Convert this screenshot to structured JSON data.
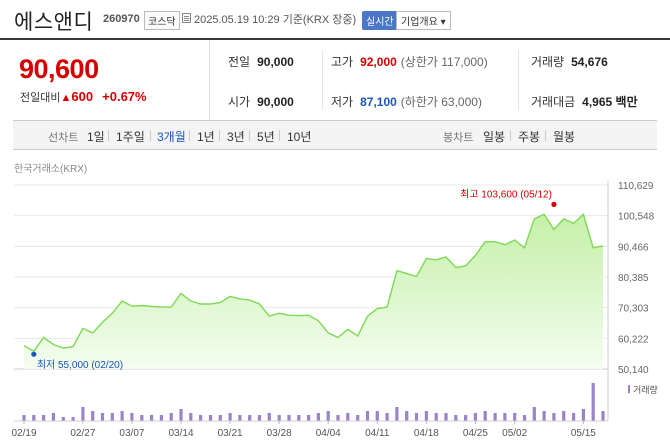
{
  "header": {
    "stock_name": "에스앤디",
    "stock_code": "260970",
    "market": "코스닥",
    "date": "2025.05.19 10:29  기준(KRX 장중)",
    "realtime_label": "실시간",
    "company_info_label": "기업개요 ▾"
  },
  "price": {
    "current": "90,600",
    "compare_label": "전일대비",
    "change_arrow": "▲",
    "change": "600",
    "change_pct": "+0.67%"
  },
  "stats": {
    "prev_close": {
      "label": "전일",
      "value": "90,000"
    },
    "high": {
      "label": "고가",
      "value": "92,000",
      "sub": "(상한가 117,000)"
    },
    "volume": {
      "label": "거래량",
      "value": "54,676"
    },
    "open": {
      "label": "시가",
      "value": "90,000"
    },
    "low": {
      "label": "저가",
      "value": "87,100",
      "sub": "(하한가 63,000)"
    },
    "trade_value": {
      "label": "거래대금",
      "value": "4,965 백만"
    }
  },
  "tabs": {
    "line_chart_label": "선차트",
    "periods": [
      "1일",
      "1주일",
      "3개월",
      "1년",
      "3년",
      "5년",
      "10년"
    ],
    "active_period": "3개월",
    "candle_chart_label": "봉차트",
    "candle_periods": [
      "일봉",
      "주봉",
      "월봉"
    ]
  },
  "chart_label": "한국거래소(KRX)",
  "colors": {
    "up": "#d60000",
    "down": "#1a57b8",
    "line": "#7ed957",
    "fill_top": "#c5f0a8",
    "fill_bottom": "#f4fdf0",
    "volume_bar": "#9b84c9"
  },
  "chart_data": {
    "type": "area",
    "x": [
      "02/19",
      "02/20",
      "02/21",
      "02/24",
      "02/25",
      "02/26",
      "02/27",
      "02/28",
      "03/04",
      "03/05",
      "03/06",
      "03/07",
      "03/10",
      "03/11",
      "03/12",
      "03/13",
      "03/14",
      "03/17",
      "03/18",
      "03/19",
      "03/20",
      "03/21",
      "03/24",
      "03/25",
      "03/26",
      "03/27",
      "03/28",
      "03/31",
      "04/01",
      "04/02",
      "04/03",
      "04/04",
      "04/07",
      "04/08",
      "04/09",
      "04/10",
      "04/11",
      "04/14",
      "04/15",
      "04/16",
      "04/17",
      "04/18",
      "04/21",
      "04/22",
      "04/23",
      "04/24",
      "04/25",
      "04/28",
      "04/29",
      "04/30",
      "05/02",
      "05/07",
      "05/08",
      "05/09",
      "05/12",
      "05/13",
      "05/14",
      "05/15",
      "05/16",
      "05/19"
    ],
    "series": [
      {
        "values": [
          57800,
          56000,
          60500,
          58200,
          57000,
          57500,
          63500,
          62000,
          65500,
          68500,
          72500,
          70800,
          71000,
          70700,
          70500,
          70500,
          75000,
          72500,
          71500,
          71500,
          72000,
          74000,
          73200,
          72800,
          71500,
          67500,
          68500,
          67800,
          67700,
          67800,
          66000,
          62000,
          60500,
          63200,
          61000,
          67500,
          70000,
          70500,
          82500,
          81500,
          80500,
          86500,
          86000,
          87000,
          83500,
          84000,
          87500,
          92000,
          92000,
          91000,
          92500,
          90000,
          99500,
          101000,
          96000,
          99500,
          98000,
          101000,
          90000,
          90600
        ]
      }
    ],
    "volume": [
      3,
      3,
      3,
      4,
      2,
      2,
      7,
      5,
      4,
      4,
      5,
      4,
      3,
      3,
      3,
      4,
      6,
      4,
      3,
      3,
      3,
      4,
      3,
      3,
      3,
      4,
      3,
      3,
      3,
      3,
      4,
      5,
      3,
      4,
      3,
      5,
      5,
      4,
      7,
      5,
      4,
      5,
      4,
      4,
      3,
      3,
      4,
      5,
      4,
      4,
      4,
      3,
      7,
      5,
      4,
      5,
      4,
      6,
      19,
      5
    ],
    "y_ticks": [
      "110,629",
      "100,548",
      "90,466",
      "80,385",
      "70,303",
      "60,222",
      "50,140"
    ],
    "ylim": [
      50140,
      110629
    ],
    "x_tick_labels": [
      "02/19",
      "02/27",
      "03/07",
      "03/14",
      "03/21",
      "03/28",
      "04/04",
      "04/11",
      "04/18",
      "04/25",
      "05/02",
      "05/15"
    ],
    "max_annotation": "최고 103,600 (05/12)",
    "max_value": 103600,
    "max_index": 54,
    "min_annotation": "최저 55,000 (02/20)",
    "min_value": 55000,
    "min_index": 1,
    "volume_legend": "거래량"
  }
}
